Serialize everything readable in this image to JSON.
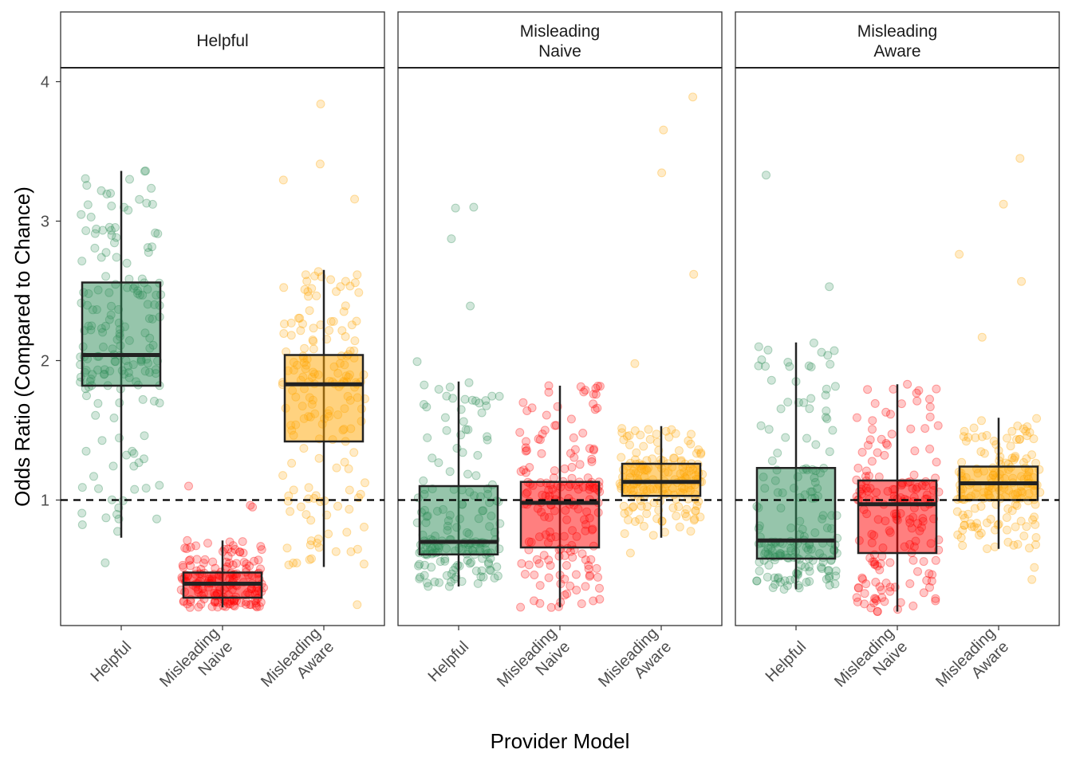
{
  "chart_data": {
    "type": "box",
    "xlabel": "Provider Model",
    "ylabel": "Odds Ratio (Compared to Chance)",
    "ylim": [
      0.1,
      4.1
    ],
    "yticks": [
      1,
      2,
      3,
      4
    ],
    "reference_line": 1,
    "categories": [
      "Helpful",
      "Misleading\nNaive",
      "Misleading\nAware"
    ],
    "colors": {
      "Helpful": "#2e8b57",
      "Misleading\nNaive": "#ff0000",
      "Misleading\nAware": "#ffa500"
    },
    "panels": [
      {
        "title": "Helpful",
        "boxes": [
          {
            "category": "Helpful",
            "q1": 1.82,
            "median": 2.04,
            "q3": 2.56,
            "whisker_low": 0.73,
            "whisker_high": 3.36,
            "outliers": []
          },
          {
            "category": "Misleading\nNaive",
            "q1": 0.3,
            "median": 0.4,
            "q3": 0.48,
            "whisker_low": 0.23,
            "whisker_high": 0.71,
            "outliers": []
          },
          {
            "category": "Misleading\nAware",
            "q1": 1.42,
            "median": 1.83,
            "q3": 2.04,
            "whisker_low": 0.52,
            "whisker_high": 2.65,
            "outliers": []
          }
        ],
        "jitter_extremes": [
          {
            "category": "Helpful",
            "min": 0.55,
            "max": 3.36
          },
          {
            "category": "Misleading\nNaive",
            "min": 0.23,
            "max": 1.1
          },
          {
            "category": "Misleading\nAware",
            "min": 0.25,
            "max": 3.84
          }
        ]
      },
      {
        "title": "Misleading\nNaive",
        "boxes": [
          {
            "category": "Helpful",
            "q1": 0.61,
            "median": 0.7,
            "q3": 1.1,
            "whisker_low": 0.38,
            "whisker_high": 1.85,
            "outliers": []
          },
          {
            "category": "Misleading\nNaive",
            "q1": 0.66,
            "median": 0.98,
            "q3": 1.13,
            "whisker_low": 0.23,
            "whisker_high": 1.82,
            "outliers": []
          },
          {
            "category": "Misleading\nAware",
            "q1": 1.03,
            "median": 1.13,
            "q3": 1.26,
            "whisker_low": 0.73,
            "whisker_high": 1.53,
            "outliers": []
          }
        ],
        "jitter_extremes": [
          {
            "category": "Helpful",
            "min": 0.38,
            "max": 3.1
          },
          {
            "category": "Misleading\nNaive",
            "min": 0.23,
            "max": 1.82
          },
          {
            "category": "Misleading\nAware",
            "min": 0.62,
            "max": 3.89
          }
        ]
      },
      {
        "title": "Misleading\nAware",
        "boxes": [
          {
            "category": "Helpful",
            "q1": 0.58,
            "median": 0.71,
            "q3": 1.23,
            "whisker_low": 0.36,
            "whisker_high": 2.13,
            "outliers": []
          },
          {
            "category": "Misleading\nNaive",
            "q1": 0.62,
            "median": 0.97,
            "q3": 1.14,
            "whisker_low": 0.2,
            "whisker_high": 1.83,
            "outliers": []
          },
          {
            "category": "Misleading\nAware",
            "q1": 1.0,
            "median": 1.12,
            "q3": 1.24,
            "whisker_low": 0.65,
            "whisker_high": 1.59,
            "outliers": []
          }
        ],
        "jitter_extremes": [
          {
            "category": "Helpful",
            "min": 0.36,
            "max": 3.33
          },
          {
            "category": "Misleading\nNaive",
            "min": 0.2,
            "max": 1.83
          },
          {
            "category": "Misleading\nAware",
            "min": 0.43,
            "max": 3.45
          }
        ]
      }
    ]
  }
}
